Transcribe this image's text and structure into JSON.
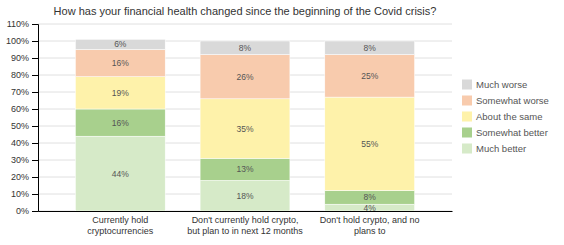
{
  "chart_data": {
    "type": "bar",
    "title": "How has your financial health changed since the beginning of the Covid crisis?",
    "categories": [
      "Currently hold\ncryptocurrencies",
      "Don't currently hold crypto,\nbut plan to in next 12 months",
      "Don't hold crypto, and no\nplans to"
    ],
    "stacked": true,
    "data_labels": true,
    "grid": true,
    "legend": "right",
    "series": [
      {
        "name": "Much better",
        "color": "#d6eac8",
        "values": [
          44,
          18,
          4
        ],
        "value_labels": [
          "44%",
          "18%",
          "4%"
        ]
      },
      {
        "name": "Somewhat better",
        "color": "#a8d08d",
        "values": [
          16,
          13,
          8
        ],
        "value_labels": [
          "16%",
          "13%",
          "8%"
        ]
      },
      {
        "name": "About the same",
        "color": "#fef2aa",
        "values": [
          19,
          35,
          55
        ],
        "value_labels": [
          "19%",
          "35%",
          "55%"
        ]
      },
      {
        "name": "Somewhat worse",
        "color": "#f8cbad",
        "values": [
          16,
          26,
          25
        ],
        "value_labels": [
          "16%",
          "26%",
          "25%"
        ]
      },
      {
        "name": "Much worse",
        "color": "#d9d9d9",
        "values": [
          6,
          8,
          8
        ],
        "value_labels": [
          "6%",
          "8%",
          "8%"
        ]
      }
    ],
    "ylim": [
      0,
      110
    ],
    "yticks": [
      {
        "value": 0,
        "label": "0%"
      },
      {
        "value": 10,
        "label": "10%"
      },
      {
        "value": 20,
        "label": "20%"
      },
      {
        "value": 30,
        "label": "30%"
      },
      {
        "value": 40,
        "label": "40%"
      },
      {
        "value": 50,
        "label": "50%"
      },
      {
        "value": 60,
        "label": "60%"
      },
      {
        "value": 70,
        "label": "70%"
      },
      {
        "value": 80,
        "label": "80%"
      },
      {
        "value": 90,
        "label": "90%"
      },
      {
        "value": 100,
        "label": "100%"
      },
      {
        "value": 110,
        "label": "110%"
      }
    ]
  }
}
